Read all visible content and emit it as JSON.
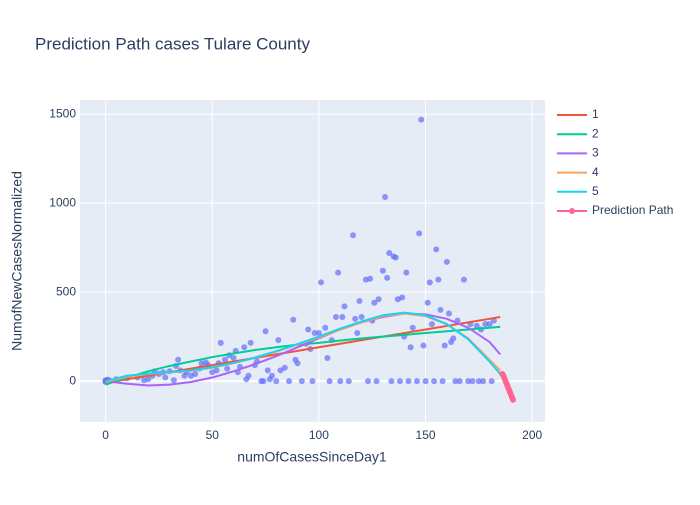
{
  "chart_data": {
    "type": "scatter",
    "title": "Prediction Path cases Tulare County",
    "x_label": "numOfCasesSinceDay1",
    "y_label": "NumofNewCasesNormalized",
    "xlim": [
      -12,
      206
    ],
    "ylim": [
      -230,
      1580
    ],
    "xticks": [
      0,
      50,
      100,
      150,
      200
    ],
    "yticks": [
      0,
      500,
      1000,
      1500
    ],
    "grid": true,
    "series": [
      {
        "color": "#636efa",
        "mode": "markers",
        "x": [
          0,
          0,
          0,
          1,
          1,
          2,
          5,
          10,
          15,
          18,
          20,
          22,
          23,
          25,
          27,
          28,
          30,
          32,
          33,
          34,
          35,
          37,
          38,
          40,
          42,
          44,
          45,
          47,
          48,
          50,
          52,
          53,
          54,
          56,
          57,
          58,
          60,
          61,
          62,
          63,
          65,
          66,
          67,
          68,
          70,
          71,
          73,
          74,
          75,
          76,
          77,
          78,
          80,
          81,
          82,
          84,
          86,
          88,
          89,
          90,
          92,
          94,
          95,
          96,
          97,
          98,
          100,
          101,
          103,
          104,
          105,
          106,
          108,
          109,
          110,
          111,
          112,
          114,
          116,
          117,
          118,
          119,
          120,
          122,
          123,
          124,
          125,
          126,
          127,
          128,
          130,
          131,
          132,
          133,
          134,
          135,
          136,
          137,
          138,
          139,
          140,
          141,
          142,
          143,
          144,
          146,
          147,
          148,
          149,
          150,
          151,
          152,
          153,
          154,
          155,
          156,
          157,
          158,
          159,
          160,
          161,
          162,
          163,
          164,
          165,
          166,
          168,
          170,
          171,
          172,
          174,
          175,
          176,
          177,
          178,
          180,
          181,
          182
        ],
        "values": [
          0,
          5,
          -5,
          3,
          8,
          2,
          10,
          15,
          20,
          5,
          10,
          30,
          55,
          40,
          50,
          20,
          55,
          5,
          85,
          120,
          60,
          30,
          50,
          30,
          40,
          70,
          100,
          105,
          90,
          50,
          60,
          100,
          215,
          120,
          70,
          145,
          130,
          170,
          50,
          80,
          190,
          10,
          30,
          215,
          90,
          110,
          0,
          0,
          280,
          60,
          10,
          30,
          0,
          230,
          60,
          75,
          0,
          345,
          120,
          100,
          0,
          210,
          290,
          180,
          0,
          270,
          270,
          555,
          300,
          130,
          0,
          230,
          360,
          610,
          0,
          360,
          420,
          0,
          820,
          350,
          270,
          450,
          360,
          570,
          0,
          575,
          340,
          440,
          0,
          460,
          620,
          1035,
          580,
          720,
          0,
          700,
          695,
          460,
          0,
          470,
          250,
          610,
          0,
          190,
          300,
          0,
          830,
          1470,
          200,
          0,
          440,
          555,
          320,
          0,
          740,
          570,
          400,
          0,
          200,
          670,
          380,
          220,
          240,
          0,
          340,
          0,
          570,
          0,
          320,
          0,
          310,
          0,
          290,
          0,
          320,
          320,
          0,
          340
        ]
      },
      {
        "name": "1",
        "color": "#EF553B",
        "mode": "lines",
        "x": [
          0,
          10,
          20,
          30,
          40,
          50,
          60,
          70,
          80,
          90,
          100,
          110,
          120,
          130,
          140,
          150,
          160,
          170,
          180,
          185
        ],
        "values": [
          -10,
          10,
          30,
          50,
          70,
          90,
          110,
          130,
          150,
          170,
          190,
          210,
          230,
          250,
          270,
          290,
          310,
          330,
          350,
          360
        ]
      },
      {
        "name": "2",
        "color": "#00cc96",
        "mode": "lines",
        "x": [
          0,
          10,
          20,
          30,
          40,
          50,
          60,
          70,
          80,
          90,
          100,
          110,
          120,
          130,
          140,
          150,
          160,
          170,
          180,
          185
        ],
        "values": [
          -20,
          20,
          55,
          85,
          110,
          135,
          155,
          175,
          190,
          205,
          215,
          228,
          240,
          250,
          260,
          270,
          280,
          290,
          300,
          305
        ]
      },
      {
        "name": "3",
        "color": "#ab63fa",
        "mode": "lines",
        "x": [
          0,
          10,
          20,
          30,
          40,
          50,
          60,
          70,
          80,
          90,
          100,
          110,
          120,
          130,
          140,
          150,
          160,
          170,
          180,
          185
        ],
        "values": [
          0,
          -15,
          -25,
          -20,
          -5,
          20,
          55,
          95,
          140,
          190,
          240,
          290,
          330,
          360,
          380,
          375,
          350,
          300,
          220,
          150
        ]
      },
      {
        "name": "4",
        "color": "#FFA15A",
        "mode": "lines",
        "x": [
          0,
          10,
          20,
          30,
          40,
          50,
          60,
          70,
          80,
          90,
          100,
          110,
          120,
          130,
          140,
          150,
          160,
          170,
          180,
          185
        ],
        "values": [
          -5,
          25,
          40,
          48,
          58,
          75,
          100,
          130,
          165,
          205,
          245,
          290,
          330,
          365,
          380,
          365,
          320,
          240,
          120,
          60
        ]
      },
      {
        "name": "5",
        "color": "#19d3f3",
        "mode": "lines",
        "x": [
          0,
          10,
          20,
          30,
          40,
          50,
          60,
          70,
          80,
          90,
          100,
          110,
          120,
          130,
          140,
          150,
          160,
          170,
          180,
          185
        ],
        "values": [
          0,
          30,
          42,
          50,
          60,
          78,
          102,
          132,
          168,
          208,
          250,
          295,
          335,
          370,
          385,
          370,
          320,
          235,
          110,
          40
        ]
      },
      {
        "name": "Prediction Path",
        "color": "#FF6692",
        "mode": "lines+markers",
        "x": [
          186,
          186.5,
          187,
          187.5,
          188,
          188.5,
          189,
          189.5,
          190,
          190.5,
          191
        ],
        "values": [
          40,
          30,
          15,
          0,
          -15,
          -30,
          -45,
          -60,
          -75,
          -90,
          -105
        ]
      }
    ]
  }
}
